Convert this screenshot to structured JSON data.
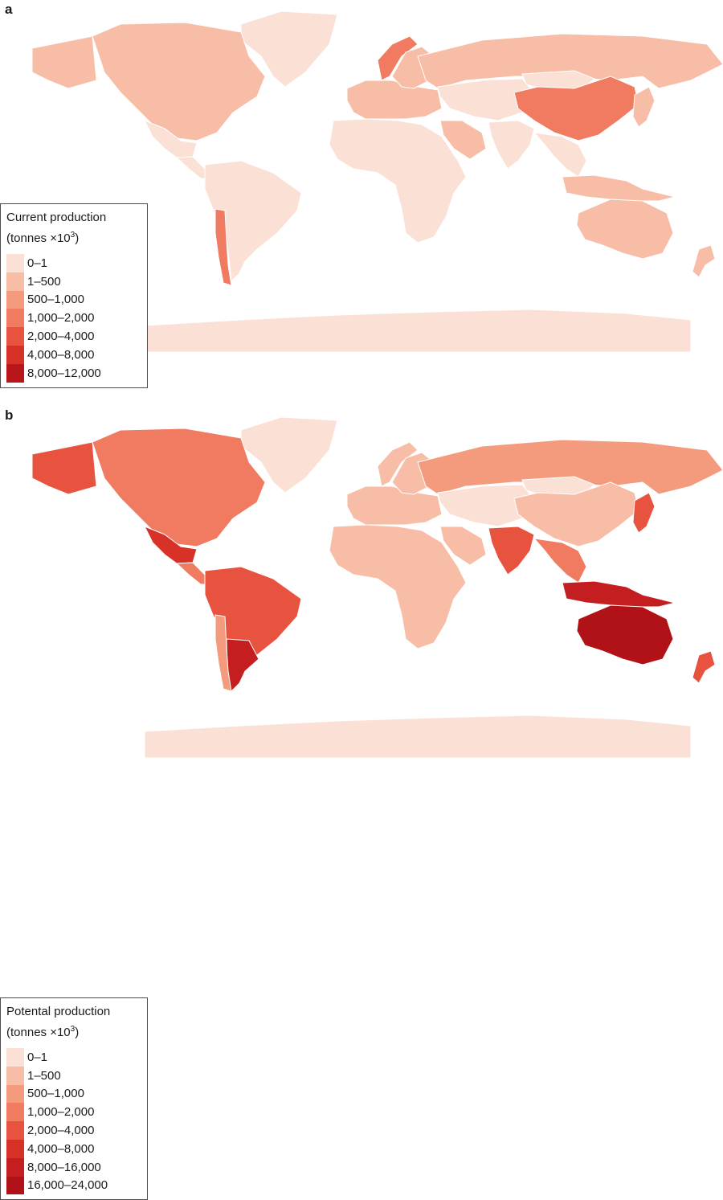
{
  "panels": [
    {
      "id": "a",
      "letter": "a",
      "legend": {
        "title_line1": "Current production",
        "title_line2_prefix": "(tonnes ×10",
        "title_line2_sup": "3",
        "title_line2_suffix": ")",
        "classes": [
          {
            "label": "0–1",
            "color": "#fbe0d6"
          },
          {
            "label": "1–500",
            "color": "#f7bda6"
          },
          {
            "label": "500–1,000",
            "color": "#f49b7e"
          },
          {
            "label": "1,000–2,000",
            "color": "#f07b60"
          },
          {
            "label": "2,000–4,000",
            "color": "#e8533f"
          },
          {
            "label": "4,000–8,000",
            "color": "#d83128"
          },
          {
            "label": "8,000–12,000",
            "color": "#b8161b"
          }
        ]
      },
      "regions": {
        "north-america": 1,
        "greenland": 0,
        "alaska": 1,
        "mexico": 0,
        "central-america": 0,
        "chile": 3,
        "south-america": 0,
        "norway": 3,
        "sweden-finland": 1,
        "europe": 1,
        "russia": 1,
        "china": 3,
        "mongolia": 0,
        "central-asia": 0,
        "arabia": 1,
        "africa": 0,
        "india": 0,
        "southeast-asia": 0,
        "indonesia": 1,
        "japan": 1,
        "australia": 1,
        "new-zealand": 1,
        "antarctica": 0
      }
    },
    {
      "id": "b",
      "letter": "b",
      "legend": {
        "title_line1": "Potental production",
        "title_line2_prefix": "(tonnes ×10",
        "title_line2_sup": "3",
        "title_line2_suffix": ")",
        "classes": [
          {
            "label": "0–1",
            "color": "#fbe0d6"
          },
          {
            "label": "1–500",
            "color": "#f7bda6"
          },
          {
            "label": "500–1,000",
            "color": "#f49b7e"
          },
          {
            "label": "1,000–2,000",
            "color": "#f07b60"
          },
          {
            "label": "2,000–4,000",
            "color": "#e8533f"
          },
          {
            "label": "4,000–8,000",
            "color": "#d83128"
          },
          {
            "label": "8,000–16,000",
            "color": "#c41e20"
          },
          {
            "label": "16,000–24,000",
            "color": "#b01218"
          }
        ]
      },
      "regions": {
        "north-america": 3,
        "greenland": 0,
        "alaska": 4,
        "mexico": 5,
        "central-america": 3,
        "chile": 2,
        "south-america": 4,
        "argentina": 6,
        "norway": 1,
        "sweden-finland": 1,
        "europe": 1,
        "russia": 2,
        "china": 1,
        "mongolia": 0,
        "central-asia": 0,
        "arabia": 1,
        "africa": 1,
        "india": 4,
        "southeast-asia": 3,
        "indonesia": 6,
        "japan": 4,
        "australia": 7,
        "new-zealand": 4,
        "antarctica": 0
      }
    }
  ]
}
